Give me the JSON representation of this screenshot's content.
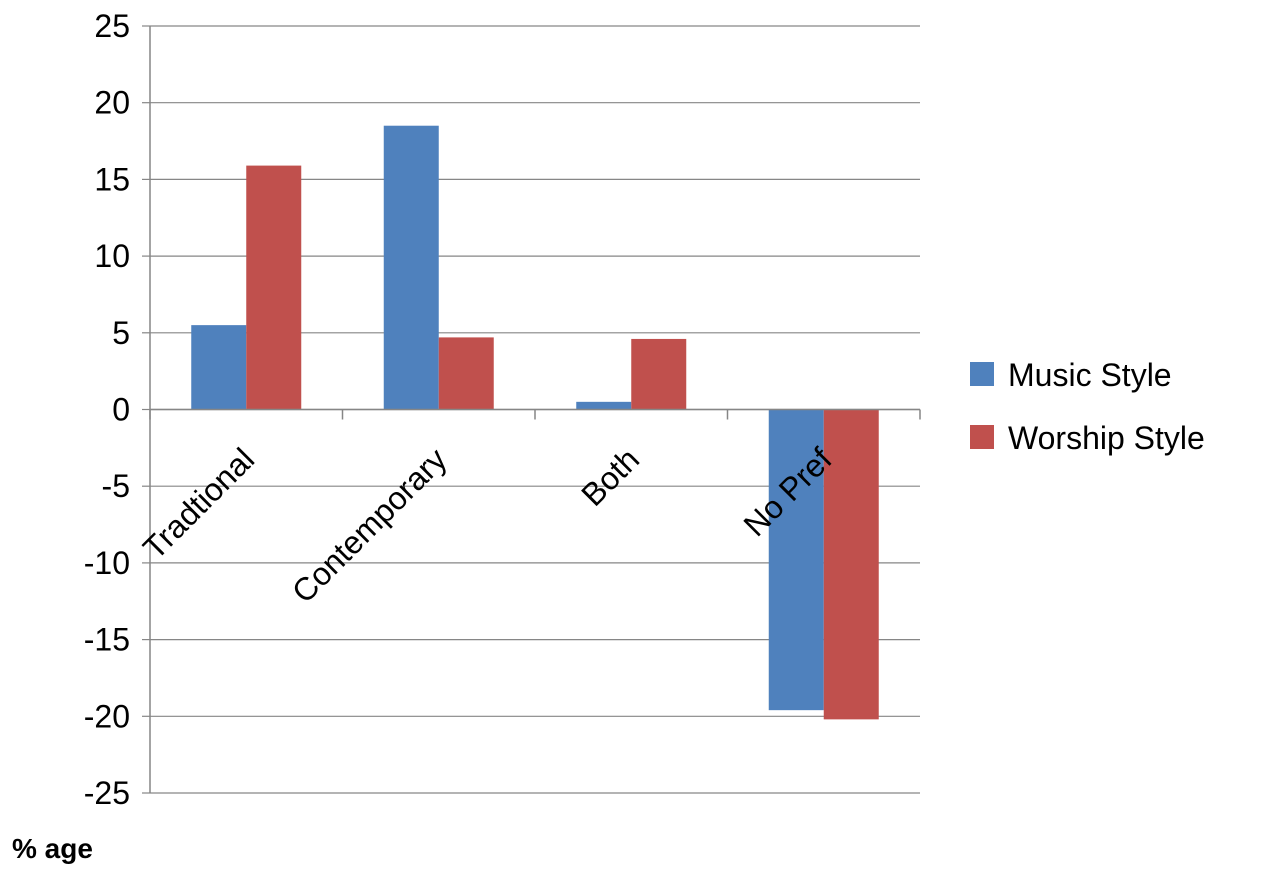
{
  "chart_data": {
    "type": "bar",
    "categories": [
      "Tradtional",
      "Contemporary",
      "Both",
      "No Pref"
    ],
    "series": [
      {
        "name": "Music Style",
        "values": [
          5.5,
          18.5,
          0.5,
          -19.6
        ],
        "color": "#4f81bd"
      },
      {
        "name": "Worship Style",
        "values": [
          15.9,
          4.7,
          4.6,
          -20.2
        ],
        "color": "#c0504d"
      }
    ],
    "title": "",
    "xlabel": "",
    "ylabel": "% age",
    "ylim": [
      -25,
      25
    ],
    "yticks": [
      "25",
      "20",
      "15",
      "10",
      "5",
      "0",
      "-5",
      "-10",
      "-15",
      "-20",
      "-25"
    ],
    "grid": true,
    "legend_position": "right"
  },
  "colors": {
    "grid": "#868686",
    "axis": "#868686"
  }
}
